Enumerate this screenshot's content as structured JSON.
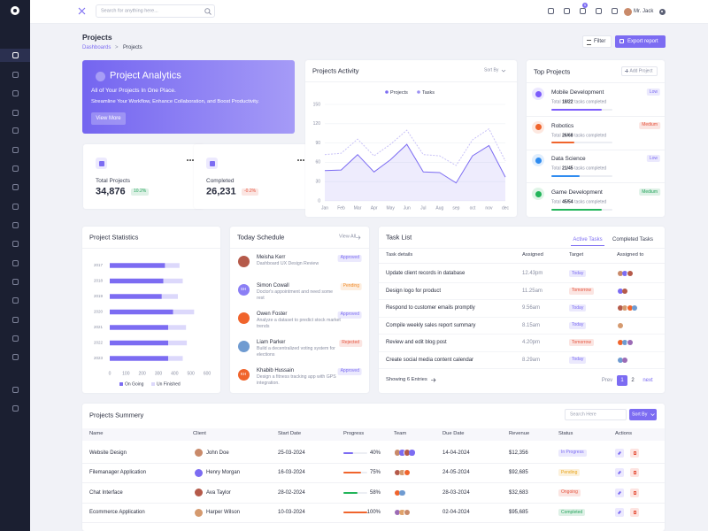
{
  "header": {
    "search_placeholder": "Search for anything here...",
    "cart_count": "5",
    "user": "Mr. Jack"
  },
  "page_header": {
    "title": "Projects",
    "breadcrumb": [
      "Dashboards",
      "Projects"
    ],
    "separator": ">",
    "filter_button": "Filter",
    "export_button": "Export report"
  },
  "hero": {
    "title": "Project Analytics",
    "subtitle": "All of Your Projects In One Place.",
    "text": "Streamline Your Workflow, Enhance Collaboration, and Boost Productivity.",
    "button": "View More"
  },
  "stats": [
    {
      "label": "Total Projects",
      "value": "34,876",
      "change": "10.2%",
      "change_color": "#22a35a"
    },
    {
      "label": "Completed",
      "value": "26,231",
      "change": "-0.2%",
      "change_color": "#e5533d"
    }
  ],
  "activity_chart": {
    "type": "line",
    "title": "Projects Activity",
    "sort_label": "Sort By",
    "categories": [
      "Jan",
      "Feb",
      "Mar",
      "Apr",
      "May",
      "Jun",
      "Jul",
      "Aug",
      "sep",
      "oct",
      "nov",
      "dec"
    ],
    "series": [
      {
        "name": "Projects",
        "color": "#7c6cf2",
        "values": [
          47,
          48,
          72,
          45,
          64,
          88,
          45,
          44,
          28,
          70,
          86,
          37
        ]
      },
      {
        "name": "Tasks",
        "color": "#c8c2f7",
        "dashed": true,
        "values": [
          72,
          74,
          96,
          70,
          88,
          110,
          72,
          70,
          55,
          95,
          112,
          62
        ]
      }
    ],
    "ylim": [
      0,
      150
    ],
    "yticks": [
      0,
      30,
      60,
      90,
      120,
      150
    ],
    "grid": true
  },
  "top_projects": {
    "title": "Top Projects",
    "add_button": "Add Project",
    "items": [
      {
        "name": "Mobile Development",
        "level": "Low",
        "level_color": "#7c6cf2",
        "total_prefix": "Total",
        "done": "18/22",
        "suffix": "tasks completed",
        "progress": 82,
        "color": "#7c5cfc"
      },
      {
        "name": "Robotics",
        "level": "Medium",
        "level_color": "#e5533d",
        "total_prefix": "Total",
        "done": "26/68",
        "suffix": "tasks completed",
        "progress": 38,
        "color": "#f0642c"
      },
      {
        "name": "Data Science",
        "level": "Low",
        "level_color": "#7c6cf2",
        "total_prefix": "Total",
        "done": "21/45",
        "suffix": "tasks completed",
        "progress": 47,
        "color": "#2f8cf0"
      },
      {
        "name": "Game Development",
        "level": "Medium",
        "level_color": "#22a35a",
        "total_prefix": "Total",
        "done": "45/54",
        "suffix": "tasks completed",
        "progress": 83,
        "color": "#22b55a"
      }
    ]
  },
  "statistics_chart": {
    "type": "bar",
    "orientation": "horizontal",
    "title": "Project Statistics",
    "categories": [
      "2017",
      "2018",
      "2019",
      "2020",
      "2021",
      "2022",
      "2023"
    ],
    "series": [
      {
        "name": "On Going",
        "color": "#7c6cf2",
        "values": [
          340,
          330,
          320,
          390,
          360,
          360,
          360
        ]
      },
      {
        "name": "Un Finished",
        "color": "#dcd8fb",
        "values": [
          430,
          450,
          420,
          520,
          470,
          475,
          450
        ]
      }
    ],
    "xlim": [
      0,
      600
    ],
    "xticks": [
      0,
      100,
      200,
      300,
      400,
      500,
      600
    ]
  },
  "schedule": {
    "title": "Today Schedule",
    "view_all": "View All",
    "items": [
      {
        "name": "Meisha Kerr",
        "status": "Approved",
        "status_color": "#7c6cf2",
        "description": "Dashboard UX Design Review"
      },
      {
        "name": "Simon Cowall",
        "initials": "SH",
        "status": "Pending",
        "status_color": "#f08c2c",
        "description": "Doctor's appointment and need some rest"
      },
      {
        "name": "Owen Foster",
        "status": "Approved",
        "status_color": "#7c6cf2",
        "description": "Analyze a dataset to predict stock market trends"
      },
      {
        "name": "Liam Parker",
        "status": "Rejected",
        "status_color": "#e5533d",
        "description": "Build a decentralized voting system for elections"
      },
      {
        "name": "Khabib Hussain",
        "initials": "KH",
        "status": "Approved",
        "status_color": "#7c6cf2",
        "description": "Design a fitness tracking app with GPS integration."
      }
    ]
  },
  "tasks": {
    "title": "Task List",
    "tabs": [
      "Active Tasks",
      "Completed Tasks"
    ],
    "columns": [
      "Task details",
      "Assigned",
      "Target",
      "Assigned to"
    ],
    "rows": [
      {
        "task": "Update client records in database",
        "time": "12.43pm",
        "target": "Today",
        "target_color": "#7c6cf2"
      },
      {
        "task": "Design logo for product",
        "time": "11.25am",
        "target": "Tomorrow",
        "target_color": "#e5533d"
      },
      {
        "task": "Respond to customer emails promptly",
        "time": "9.56am",
        "target": "Today",
        "target_color": "#7c6cf2"
      },
      {
        "task": "Compile weekly sales report summary",
        "time": "8.15am",
        "target": "Today",
        "target_color": "#7c6cf2"
      },
      {
        "task": "Review and edit blog post",
        "time": "4.20pm",
        "target": "Tomorrow",
        "target_color": "#e5533d"
      },
      {
        "task": "Create social media content calendar",
        "time": "8.29am",
        "target": "Today",
        "target_color": "#7c6cf2"
      }
    ],
    "footer": "Showing 6 Entries",
    "pagination": [
      "Prev",
      "1",
      "2",
      "next"
    ]
  },
  "summary": {
    "title": "Projects Summery",
    "search_placeholder": "Search Here",
    "sort_button": "Sort By",
    "columns": [
      "Name",
      "Client",
      "Start Date",
      "Progress",
      "Team",
      "Due Date",
      "Revenue",
      "Status",
      "Actions"
    ],
    "rows": [
      {
        "name": "Website Design",
        "client": "John Doe",
        "start": "25-03-2024",
        "progress": {
          "value": 40,
          "label": "40%"
        },
        "progress_color": "#7c6cf2",
        "due": "14-04-2024",
        "revenue": "$12,356",
        "status": "In Progress",
        "status_color": "#7c6cf2"
      },
      {
        "name": "Filemanager Application",
        "client": "Henry Morgan",
        "start": "16-03-2024",
        "progress": {
          "value": 75,
          "label": "75%"
        },
        "progress_color": "#f0642c",
        "due": "24-05-2024",
        "revenue": "$92,685",
        "status": "Pending",
        "status_color": "#e8a317"
      },
      {
        "name": "Chat Interface",
        "client": "Ava Taylor",
        "start": "28-02-2024",
        "progress": {
          "value": 58,
          "label": "58%"
        },
        "progress_color": "#22b55a",
        "due": "28-03-2024",
        "revenue": "$32,683",
        "status": "Ongoing",
        "status_color": "#e5533d"
      },
      {
        "name": "Ecommerce Application",
        "client": "Harper Wilson",
        "start": "10-03-2024",
        "progress": {
          "value": 100,
          "label": "100%"
        },
        "progress_color": "#f0642c",
        "due": "02-04-2024",
        "revenue": "$95,685",
        "status": "Completed",
        "status_color": "#22a35a"
      }
    ]
  }
}
